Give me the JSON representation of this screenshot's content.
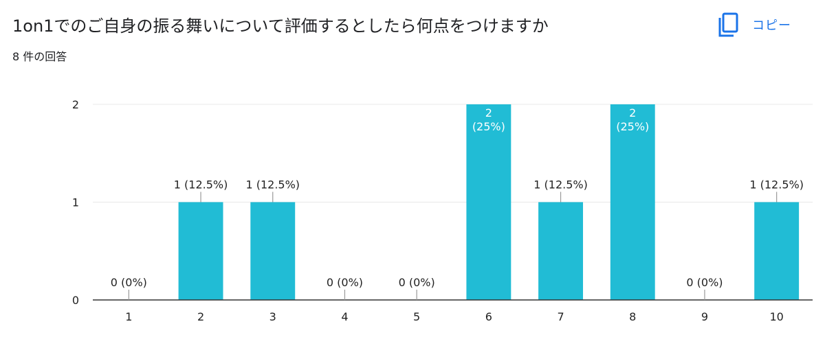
{
  "header": {
    "title": "1on1でのご自身の振る舞いについて評価するとしたら何点をつけますか",
    "response_count": "8 件の回答",
    "copy_label": "コピー"
  },
  "icons": {
    "copy": "copy-icon"
  },
  "colors": {
    "bar": "#21bcd5",
    "accent": "#1a73e8",
    "grid": "#e8e8e8",
    "axis": "#333333",
    "label": "#222222"
  },
  "chart_data": {
    "type": "bar",
    "categories": [
      "1",
      "2",
      "3",
      "4",
      "5",
      "6",
      "7",
      "8",
      "9",
      "10"
    ],
    "values": [
      0,
      1,
      1,
      0,
      0,
      2,
      1,
      2,
      0,
      1
    ],
    "data_labels": [
      "0 (0%)",
      "1 (12.5%)",
      "1 (12.5%)",
      "0 (0%)",
      "0 (0%)",
      "2\n(25%)",
      "1 (12.5%)",
      "2\n(25%)",
      "0 (0%)",
      "1 (12.5%)"
    ],
    "y_ticks": [
      0,
      1,
      2
    ],
    "ylim": [
      0,
      2
    ],
    "grid": true,
    "legend": "none"
  }
}
